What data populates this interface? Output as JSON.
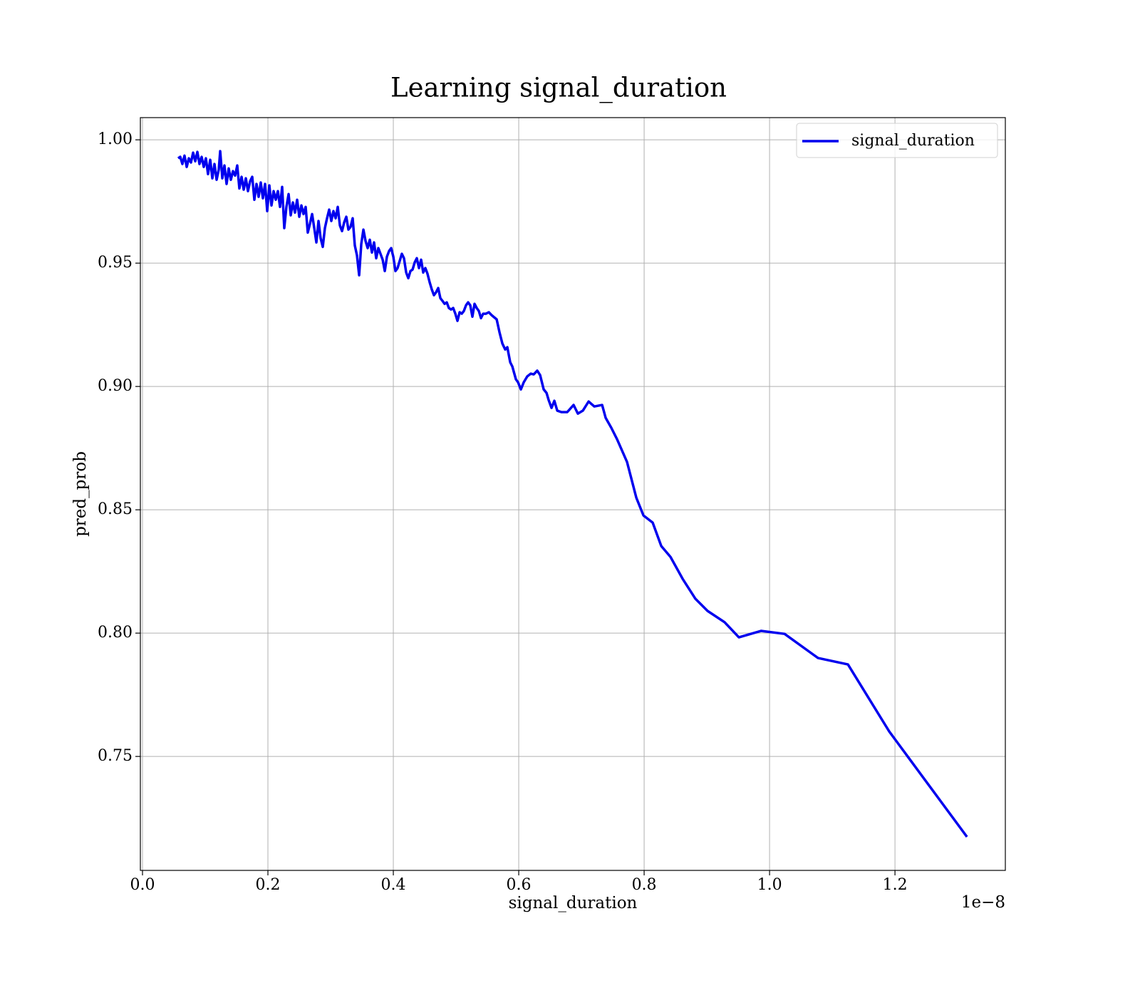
{
  "chart_data": {
    "type": "line",
    "title": "Learning signal_duration",
    "xlabel": "signal_duration",
    "ylabel": "pred_prob",
    "x_offset_text": "1e−8",
    "xlim": [
      -0.0034,
      1.376
    ],
    "ylim": [
      0.7038,
      1.009
    ],
    "xticks": [
      {
        "value": 0,
        "label": "0.0"
      },
      0.2,
      0.4,
      0.6,
      0.8,
      {
        "value": 1,
        "label": "1.0"
      },
      1.2
    ],
    "yticks": [
      0.75,
      {
        "value": 0.8,
        "label": "0.80"
      },
      0.85,
      {
        "value": 0.9,
        "label": "0.90"
      },
      0.95,
      {
        "value": 1,
        "label": "1.00"
      }
    ],
    "grid": true,
    "legend": "upper right",
    "x": [
      0.0568,
      0.0602,
      0.0636,
      0.067,
      0.0705,
      0.0739,
      0.0773,
      0.0807,
      0.0841,
      0.0875,
      0.0909,
      0.0943,
      0.0977,
      0.1011,
      0.1045,
      0.108,
      0.1114,
      0.1148,
      0.1182,
      0.1216,
      0.1239,
      0.1273,
      0.1307,
      0.1341,
      0.1375,
      0.1409,
      0.1443,
      0.1477,
      0.1511,
      0.1545,
      0.158,
      0.1614,
      0.1648,
      0.1682,
      0.1716,
      0.175,
      0.1784,
      0.1818,
      0.1852,
      0.1886,
      0.192,
      0.1955,
      0.1989,
      0.2023,
      0.2057,
      0.2091,
      0.2125,
      0.2159,
      0.2193,
      0.2227,
      0.2261,
      0.2295,
      0.233,
      0.2364,
      0.2398,
      0.2432,
      0.2466,
      0.25,
      0.2534,
      0.2568,
      0.2602,
      0.2636,
      0.267,
      0.2705,
      0.2739,
      0.2773,
      0.2807,
      0.2841,
      0.2875,
      0.2909,
      0.2943,
      0.2977,
      0.3011,
      0.3045,
      0.308,
      0.3114,
      0.3148,
      0.3182,
      0.3216,
      0.325,
      0.3284,
      0.3318,
      0.3352,
      0.3386,
      0.342,
      0.3455,
      0.3489,
      0.3523,
      0.3557,
      0.3591,
      0.3625,
      0.3659,
      0.3693,
      0.3727,
      0.3761,
      0.3795,
      0.383,
      0.3864,
      0.3898,
      0.3932,
      0.3966,
      0.4,
      0.4034,
      0.4068,
      0.4102,
      0.4136,
      0.417,
      0.4205,
      0.4239,
      0.4273,
      0.4307,
      0.4341,
      0.4375,
      0.4409,
      0.4443,
      0.4477,
      0.4511,
      0.4545,
      0.458,
      0.4614,
      0.4648,
      0.4682,
      0.4716,
      0.475,
      0.4784,
      0.4818,
      0.4852,
      0.4886,
      0.492,
      0.4955,
      0.4989,
      0.5023,
      0.5057,
      0.5091,
      0.5125,
      0.5159,
      0.5193,
      0.5227,
      0.5261,
      0.5295,
      0.533,
      0.5364,
      0.5398,
      0.5432,
      0.5477,
      0.5523,
      0.5568,
      0.5648,
      0.5693,
      0.5739,
      0.5784,
      0.5818,
      0.5864,
      0.5898,
      0.5955,
      0.5989,
      0.6034,
      0.608,
      0.6136,
      0.6193,
      0.6239,
      0.6295,
      0.6341,
      0.6398,
      0.6443,
      0.6477,
      0.6523,
      0.6568,
      0.6614,
      0.6682,
      0.6773,
      0.6875,
      0.6943,
      0.7023,
      0.7114,
      0.7205,
      0.733,
      0.7386,
      0.7477,
      0.7568,
      0.7727,
      0.7875,
      0.7989,
      0.8136,
      0.8273,
      0.842,
      0.8614,
      0.8818,
      0.9011,
      0.9284,
      0.9511,
      0.9864,
      1.0239,
      1.0773,
      1.125,
      1.1909,
      1.3148
    ],
    "series": [
      {
        "name": "signal_duration",
        "color": "#0000ee",
        "values": [
          0.9925,
          0.9931,
          0.9902,
          0.9936,
          0.989,
          0.9925,
          0.9908,
          0.9948,
          0.9913,
          0.9951,
          0.9902,
          0.9931,
          0.989,
          0.9925,
          0.9861,
          0.9919,
          0.9844,
          0.9902,
          0.9838,
          0.9879,
          0.9954,
          0.9844,
          0.9896,
          0.9821,
          0.9884,
          0.9838,
          0.9873,
          0.9855,
          0.9896,
          0.9803,
          0.985,
          0.9798,
          0.9844,
          0.9792,
          0.9832,
          0.985,
          0.9757,
          0.9821,
          0.9769,
          0.9827,
          0.9763,
          0.9821,
          0.9711,
          0.9815,
          0.9734,
          0.9792,
          0.9757,
          0.9792,
          0.9728,
          0.9809,
          0.9642,
          0.9728,
          0.978,
          0.9694,
          0.9746,
          0.9705,
          0.9757,
          0.9688,
          0.9734,
          0.9699,
          0.9728,
          0.9624,
          0.9659,
          0.9699,
          0.9642,
          0.9584,
          0.9671,
          0.9601,
          0.9566,
          0.9642,
          0.9682,
          0.9717,
          0.9671,
          0.9711,
          0.9682,
          0.9728,
          0.9653,
          0.963,
          0.9665,
          0.9688,
          0.9636,
          0.9647,
          0.9682,
          0.9572,
          0.9532,
          0.9451,
          0.9578,
          0.9636,
          0.959,
          0.9561,
          0.9595,
          0.9543,
          0.9584,
          0.952,
          0.9561,
          0.9538,
          0.9514,
          0.9468,
          0.9526,
          0.9549,
          0.9561,
          0.9526,
          0.9468,
          0.948,
          0.9509,
          0.9538,
          0.952,
          0.9462,
          0.9439,
          0.9468,
          0.9474,
          0.9503,
          0.952,
          0.948,
          0.9514,
          0.9462,
          0.948,
          0.9457,
          0.9422,
          0.9393,
          0.937,
          0.9382,
          0.9399,
          0.9358,
          0.9347,
          0.9335,
          0.9341,
          0.9318,
          0.9312,
          0.9318,
          0.9295,
          0.9266,
          0.9301,
          0.9295,
          0.9306,
          0.9329,
          0.9341,
          0.9329,
          0.9283,
          0.9335,
          0.9318,
          0.9306,
          0.9277,
          0.9295,
          0.9295,
          0.9301,
          0.9289,
          0.9272,
          0.922,
          0.9174,
          0.915,
          0.9159,
          0.9098,
          0.9081,
          0.9029,
          0.9017,
          0.8988,
          0.9017,
          0.9041,
          0.9052,
          0.9049,
          0.9064,
          0.9046,
          0.8988,
          0.8974,
          0.8945,
          0.8913,
          0.8942,
          0.8902,
          0.8896,
          0.8896,
          0.8925,
          0.889,
          0.8902,
          0.8939,
          0.8919,
          0.8925,
          0.8873,
          0.8832,
          0.8786,
          0.8694,
          0.8549,
          0.8477,
          0.8448,
          0.8353,
          0.8309,
          0.822,
          0.8139,
          0.809,
          0.8044,
          0.7983,
          0.8009,
          0.7997,
          0.7899,
          0.7873,
          0.7601,
          0.7174
        ]
      }
    ]
  }
}
